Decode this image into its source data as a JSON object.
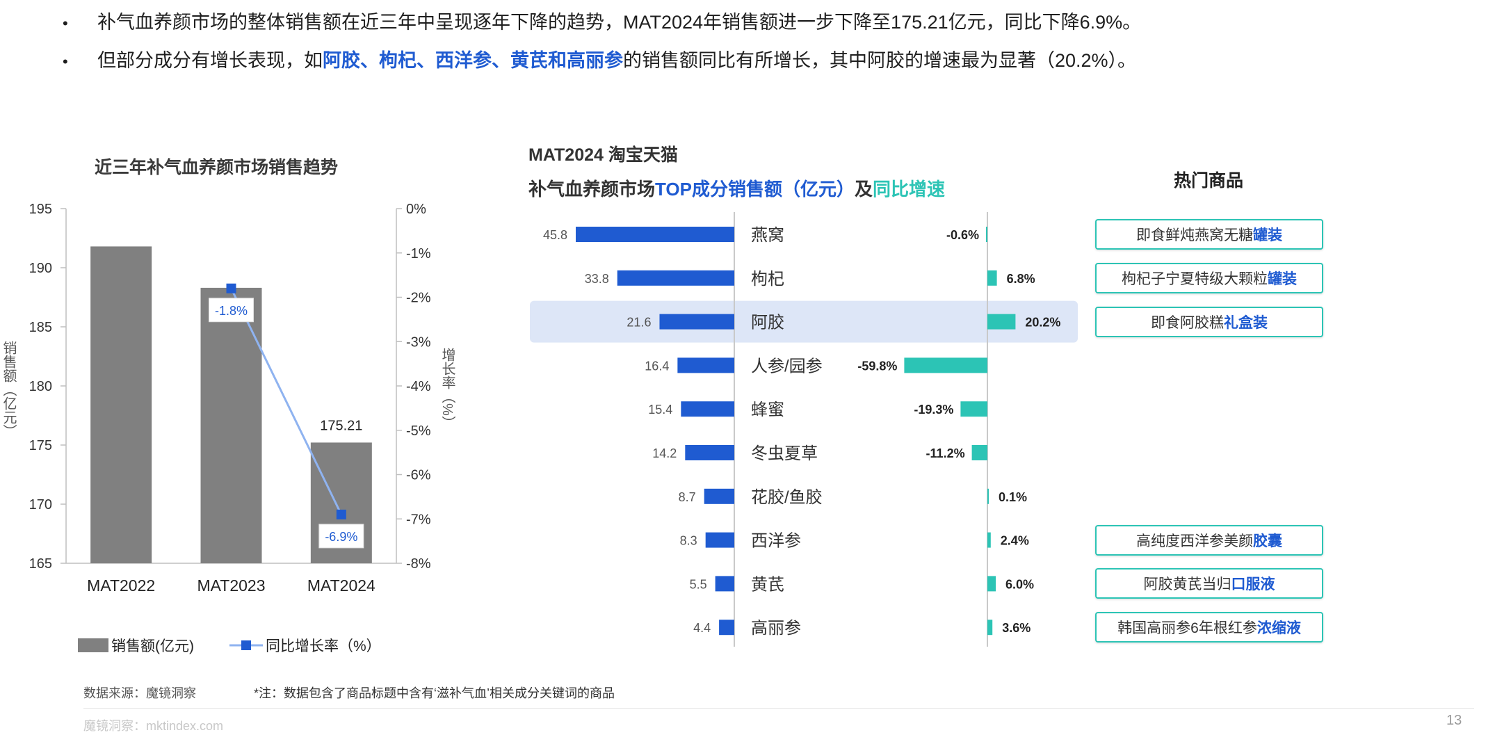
{
  "bullets": [
    {
      "parts": [
        {
          "t": "补气血养颜市场的整体销售额在近三年中呈现逐年下降的趋势，MAT2024年销售额进一步下降至175.21亿元，同比下降6.9%。",
          "hl": false
        }
      ]
    },
    {
      "parts": [
        {
          "t": "但部分成分有增长表现，如",
          "hl": false
        },
        {
          "t": "阿胶、枸杞、西洋参、黄芪和高丽参",
          "hl": true
        },
        {
          "t": "的销售额同比有所增长，其中阿胶的增速最为显著（20.2%）。",
          "hl": false
        }
      ]
    }
  ],
  "bullet_symbol": "•",
  "left_chart_title": "近三年补气血养颜市场销售趋势",
  "right_title_line1": "MAT2024 淘宝天猫",
  "right_title_line2": {
    "p1": "补气血养颜市场",
    "p2": "TOP成分销售额（亿元）",
    "p3": "及",
    "p4": "同比增速"
  },
  "hot_title": "热门商品",
  "hot_items": [
    {
      "row": 0,
      "text": "即食鲜炖燕窝无糖",
      "em": "罐装"
    },
    {
      "row": 1,
      "text": "枸杞子宁夏特级大颗粒",
      "em": "罐装"
    },
    {
      "row": 2,
      "text": "即食阿胶糕",
      "em": "礼盒装"
    },
    {
      "row": 7,
      "text": "高纯度西洋参美颜",
      "em": "胶囊"
    },
    {
      "row": 8,
      "text": "阿胶黄芪当归",
      "em": "口服液"
    },
    {
      "row": 9,
      "text": "韩国高丽参6年根红参",
      "em": "浓缩液"
    }
  ],
  "footer": {
    "source": "数据来源：魔镜洞察",
    "note": "*注：数据包含了商品标题中含有‘滋补气血’相关成分关键词的商品",
    "site": "魔镜洞察：mktindex.com",
    "page": "13"
  },
  "colors": {
    "bar_gray": "#808080",
    "line_blue": "#8fb3f0",
    "marker_blue": "#1f5bd1",
    "bar_blue": "#1f5bd1",
    "teal": "#2cc4b5",
    "highlight": "#dde6f7"
  },
  "chart_data": [
    {
      "type": "bar",
      "title": "近三年补气血养颜市场销售趋势",
      "categories": [
        "MAT2022",
        "MAT2023",
        "MAT2024"
      ],
      "series": [
        {
          "name": "销售额(亿元)",
          "type": "bar",
          "axis": "left",
          "values": [
            191.8,
            188.3,
            175.21
          ],
          "data_labels": [
            null,
            null,
            "175.21"
          ]
        },
        {
          "name": "同比增长率（%）",
          "type": "line",
          "axis": "right",
          "values": [
            null,
            -1.8,
            -6.9
          ],
          "data_labels": [
            null,
            "-1.8%",
            "-6.9%"
          ]
        }
      ],
      "ylabel": "销售额（亿元）",
      "y2label": "增长率（%）",
      "ylim": [
        165,
        195
      ],
      "yticks": [
        "195",
        "190",
        "185",
        "180",
        "175",
        "170",
        "165"
      ],
      "y2lim": [
        -8,
        0
      ],
      "y2ticks": [
        "0%",
        "-1%",
        "-2%",
        "-3%",
        "-4%",
        "-5%",
        "-6%",
        "-7%",
        "-8%"
      ],
      "legend": "bottom",
      "grid": false
    },
    {
      "type": "bar",
      "orientation": "horizontal",
      "title": "补气血养颜市场TOP成分销售额（亿元）及同比增速",
      "categories": [
        "燕窝",
        "枸杞",
        "阿胶",
        "人参/园参",
        "蜂蜜",
        "冬虫夏草",
        "花胶/鱼胶",
        "西洋参",
        "黄芪",
        "高丽参"
      ],
      "series": [
        {
          "name": "销售额（亿元）",
          "values": [
            45.8,
            33.8,
            21.6,
            16.4,
            15.4,
            14.2,
            8.7,
            8.3,
            5.5,
            4.4
          ],
          "data_labels": [
            "45.8",
            "33.8",
            "21.6",
            "16.4",
            "15.4",
            "14.2",
            "8.7",
            "8.3",
            "5.5",
            "4.4"
          ]
        },
        {
          "name": "同比增速",
          "values": [
            -0.6,
            6.8,
            20.2,
            -59.8,
            -19.3,
            -11.2,
            0.1,
            2.4,
            6.0,
            3.6
          ],
          "data_labels": [
            "-0.6%",
            "6.8%",
            "20.2%",
            "-59.8%",
            "-19.3%",
            "-11.2%",
            "0.1%",
            "2.4%",
            "6.0%",
            "3.6%"
          ]
        }
      ],
      "highlight_category": "阿胶",
      "grid": false
    }
  ]
}
